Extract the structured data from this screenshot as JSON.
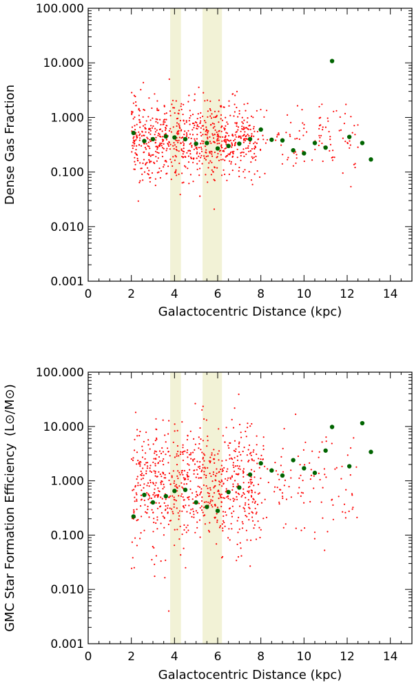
{
  "chart_data": [
    {
      "type": "scatter",
      "title": "",
      "xlabel": "Galactocentric Distance (kpc)",
      "ylabel": "Dense Gas Fraction",
      "xlim": [
        0,
        15
      ],
      "ylim": [
        0.001,
        100
      ],
      "yscale": "log",
      "x_ticks": [
        "0",
        "2",
        "4",
        "6",
        "8",
        "10",
        "12",
        "14"
      ],
      "y_ticks": [
        "0.001",
        "0.010",
        "0.100",
        "1.000",
        "10.000",
        "100.000"
      ],
      "shaded_bands": [
        [
          3.8,
          4.3
        ],
        [
          5.3,
          6.2
        ]
      ],
      "band_color": "#f2f2d6",
      "scatter_color": "#ff0000",
      "binned_color": "#006400",
      "scatter_center": 0.4,
      "scatter_sigma_dex": 0.38,
      "binned": {
        "x": [
          2.1,
          2.6,
          3.0,
          3.6,
          4.0,
          4.5,
          5.0,
          5.5,
          6.0,
          6.5,
          7.0,
          7.5,
          8.0,
          8.5,
          9.0,
          9.5,
          10.0,
          10.5,
          11.0,
          11.3,
          12.1,
          12.7,
          13.1
        ],
        "y": [
          0.52,
          0.37,
          0.4,
          0.45,
          0.43,
          0.4,
          0.33,
          0.34,
          0.27,
          0.3,
          0.33,
          0.4,
          0.6,
          0.39,
          0.38,
          0.25,
          0.22,
          0.34,
          0.28,
          10.8,
          0.44,
          0.34,
          0.17
        ]
      }
    },
    {
      "type": "scatter",
      "title": "",
      "xlabel": "Galactocentric Distance (kpc)",
      "ylabel": "GMC Star Formation Efficiency",
      "ylabel_units": "(L⊙/M⊙)",
      "xlim": [
        0,
        15
      ],
      "ylim": [
        0.001,
        100
      ],
      "yscale": "log",
      "x_ticks": [
        "0",
        "2",
        "4",
        "6",
        "8",
        "10",
        "12",
        "14"
      ],
      "y_ticks": [
        "0.001",
        "0.010",
        "0.100",
        "1.000",
        "10.000",
        "100.000"
      ],
      "shaded_bands": [
        [
          3.8,
          4.3
        ],
        [
          5.3,
          6.2
        ]
      ],
      "band_color": "#f2f2d6",
      "scatter_color": "#ff0000",
      "binned_color": "#006400",
      "scatter_center": 0.8,
      "scatter_sigma_dex": 0.58,
      "binned": {
        "x": [
          2.1,
          2.6,
          3.0,
          3.6,
          4.0,
          4.5,
          5.0,
          5.5,
          6.0,
          6.5,
          7.0,
          7.5,
          8.0,
          8.5,
          9.0,
          9.5,
          10.0,
          10.5,
          11.0,
          11.3,
          12.1,
          12.7,
          13.1
        ],
        "y": [
          0.22,
          0.55,
          0.4,
          0.52,
          0.65,
          0.68,
          0.4,
          0.33,
          0.28,
          0.62,
          0.75,
          1.3,
          2.1,
          1.55,
          1.25,
          2.4,
          1.7,
          1.4,
          3.6,
          9.8,
          1.85,
          11.5,
          3.4
        ]
      }
    }
  ]
}
